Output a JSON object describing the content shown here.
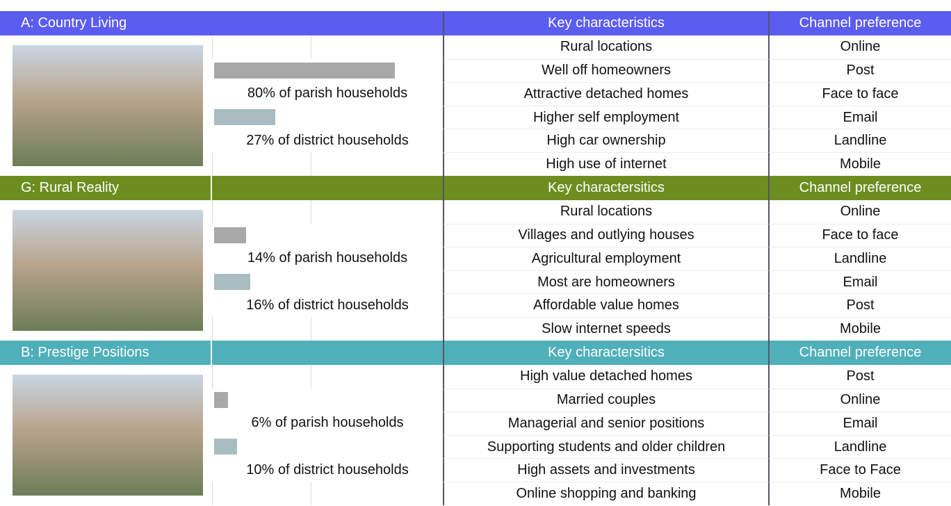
{
  "segments": [
    {
      "name": "A: Country Living",
      "color": "#5b5cf0",
      "characteristics_header": "Key characteristics",
      "channel_header": "Channel preference",
      "parish": {
        "value": 80,
        "label": "80% of parish households"
      },
      "district": {
        "value": 27,
        "label": "27% of district households"
      },
      "rows": [
        {
          "characteristic": "Rural locations",
          "channel": "Online"
        },
        {
          "characteristic": "Well off homeowners",
          "channel": "Post"
        },
        {
          "characteristic": "Attractive detached homes",
          "channel": "Face to face"
        },
        {
          "characteristic": "Higher self employment",
          "channel": "Email"
        },
        {
          "characteristic": "High car ownership",
          "channel": "Landline"
        },
        {
          "characteristic": "High use of internet",
          "channel": "Mobile"
        }
      ]
    },
    {
      "name": "G: Rural Reality",
      "color": "#6b8e1f",
      "characteristics_header": "Key charactersitics",
      "channel_header": "Channel preference",
      "parish": {
        "value": 14,
        "label": "14% of parish households"
      },
      "district": {
        "value": 16,
        "label": "16% of district households"
      },
      "rows": [
        {
          "characteristic": "Rural locations",
          "channel": "Online"
        },
        {
          "characteristic": "Villages and outlying houses",
          "channel": "Face to face"
        },
        {
          "characteristic": "Agricultural employment",
          "channel": "Landline"
        },
        {
          "characteristic": "Most are homeowners",
          "channel": "Email"
        },
        {
          "characteristic": "Affordable value homes",
          "channel": "Post"
        },
        {
          "characteristic": "Slow internet speeds",
          "channel": "Mobile"
        }
      ]
    },
    {
      "name": "B: Prestige Positions",
      "color": "#4fb0b9",
      "characteristics_header": "Key charactersitics",
      "channel_header": "Channel preference",
      "parish": {
        "value": 6,
        "label": "6% of parish households"
      },
      "district": {
        "value": 10,
        "label": "10% of district households"
      },
      "rows": [
        {
          "characteristic": "High value detached homes",
          "channel": "Post"
        },
        {
          "characteristic": "Married couples",
          "channel": "Online"
        },
        {
          "characteristic": "Managerial and senior positions",
          "channel": "Email"
        },
        {
          "characteristic": "Supporting students and older children",
          "channel": "Landline"
        },
        {
          "characteristic": "High assets and investments",
          "channel": "Face to Face"
        },
        {
          "characteristic": "Online shopping and banking",
          "channel": "Mobile"
        }
      ]
    }
  ],
  "parish_color": "#a8a8a8",
  "district_color": "#a9bcc2"
}
